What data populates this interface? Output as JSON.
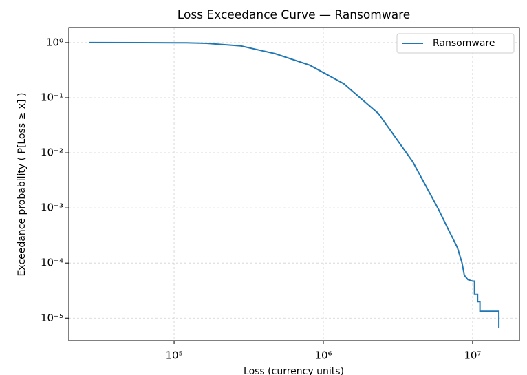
{
  "chart_data": {
    "type": "line",
    "title": "Loss Exceedance Curve — Ransomware",
    "xlabel": "Loss (currency units)",
    "ylabel": "Exceedance probability  ( P[Loss ≥ x] )",
    "x": [
      27100,
      60000,
      120000,
      165000,
      280000,
      475000,
      810000,
      1370000,
      2340000,
      3970000,
      5460000,
      5900000,
      6750000,
      7920000,
      8500000,
      8800000,
      9300000,
      10000000,
      10300000,
      10300000,
      10800000,
      10800000,
      11200000,
      11200000,
      15000000,
      15000000
    ],
    "series": [
      {
        "name": "Ransomware",
        "color": "#1f77b4",
        "values": [
          1.0,
          0.998,
          0.99,
          0.97,
          0.87,
          0.63,
          0.39,
          0.18,
          0.0515,
          0.0069,
          0.0014,
          0.00095,
          0.00045,
          0.00019,
          0.0001,
          6e-05,
          5e-05,
          4.7e-05,
          4.7e-05,
          2.7e-05,
          2.7e-05,
          2e-05,
          2e-05,
          1.33e-05,
          1.33e-05,
          6.7e-06
        ]
      }
    ],
    "xscale": "log",
    "yscale": "log",
    "xlim": [
      19700,
      20600000
    ],
    "ylim": [
      3.9e-06,
      1.88
    ],
    "xticks": [
      {
        "value": 100000,
        "label": "10⁵"
      },
      {
        "value": 1000000,
        "label": "10⁶"
      },
      {
        "value": 10000000,
        "label": "10⁷"
      }
    ],
    "yticks": [
      {
        "value": 1e-05,
        "label": "10⁻⁵"
      },
      {
        "value": 0.0001,
        "label": "10⁻⁴"
      },
      {
        "value": 0.001,
        "label": "10⁻³"
      },
      {
        "value": 0.01,
        "label": "10⁻²"
      },
      {
        "value": 0.1,
        "label": "10⁻¹"
      },
      {
        "value": 1,
        "label": "10⁰"
      }
    ],
    "grid": true,
    "legend": "upper right"
  }
}
